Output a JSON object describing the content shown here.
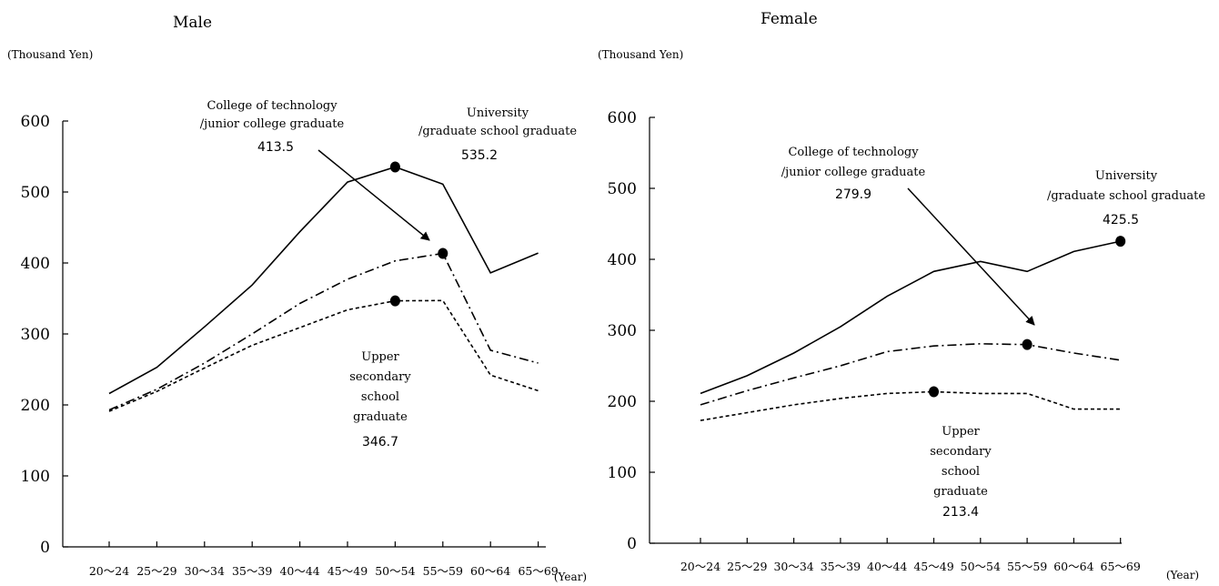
{
  "chart_data": [
    {
      "type": "line",
      "title": "Male",
      "ylabel": "(Thousand Yen)",
      "xlabel": "(Year)",
      "ylim": [
        0,
        600
      ],
      "yticks": [
        "0",
        "100",
        "200",
        "300",
        "400",
        "500",
        "600"
      ],
      "categories": [
        "20～24",
        "25～29",
        "30～34",
        "35～39",
        "40～44",
        "45～49",
        "50～54",
        "55～59",
        "60～64",
        "65～69"
      ],
      "series": [
        {
          "name": "University /graduate school graduate",
          "dash": "solid",
          "values": [
            216,
            253,
            310,
            369,
            444,
            514,
            535.2,
            511,
            386,
            414
          ],
          "peak_index": 6
        },
        {
          "name": "College of technology /junior college graduate",
          "dash": "dashdot",
          "values": [
            193,
            222,
            259,
            300,
            343,
            377,
            403,
            413.5,
            277,
            259
          ],
          "peak_index": 7
        },
        {
          "name": "Upper secondary school graduate",
          "dash": "dotted",
          "values": [
            191,
            219,
            252,
            284,
            309,
            334,
            346.7,
            347,
            242,
            220
          ],
          "peak_index": 6
        }
      ],
      "annotations": [
        {
          "lines": [
            "College of technology",
            "/junior college graduate"
          ],
          "value": "413.5"
        },
        {
          "lines": [
            "University",
            "/graduate school graduate"
          ],
          "value": "535.2"
        },
        {
          "lines": [
            "Upper",
            "secondary",
            "school",
            "graduate"
          ],
          "value": "346.7"
        }
      ]
    },
    {
      "type": "line",
      "title": "Female",
      "ylabel": "(Thousand Yen)",
      "xlabel": "(Year)",
      "ylim": [
        0,
        600
      ],
      "yticks": [
        "0",
        "100",
        "200",
        "300",
        "400",
        "500",
        "600"
      ],
      "categories": [
        "20～24",
        "25～29",
        "30～34",
        "35～39",
        "40～44",
        "45～49",
        "50～54",
        "55～59",
        "60～64",
        "65～69"
      ],
      "series": [
        {
          "name": "University /graduate school graduate",
          "dash": "solid",
          "values": [
            211,
            236,
            268,
            305,
            348,
            383,
            397,
            383,
            411,
            425.5
          ],
          "peak_index": 9
        },
        {
          "name": "College of technology /junior college graduate",
          "dash": "dashdot",
          "values": [
            195,
            215,
            233,
            250,
            270,
            278,
            281,
            279.9,
            268,
            258
          ],
          "peak_index": 7
        },
        {
          "name": "Upper secondary school graduate",
          "dash": "dotted",
          "values": [
            173,
            184,
            195,
            204,
            211,
            213.4,
            211,
            211,
            189,
            189
          ],
          "peak_index": 5
        }
      ],
      "annotations": [
        {
          "lines": [
            "College of technology",
            "/junior college graduate"
          ],
          "value": "279.9"
        },
        {
          "lines": [
            "University",
            "/graduate school graduate"
          ],
          "value": "425.5"
        },
        {
          "lines": [
            "Upper",
            "secondary",
            "school",
            "graduate"
          ],
          "value": "213.4"
        }
      ]
    }
  ]
}
